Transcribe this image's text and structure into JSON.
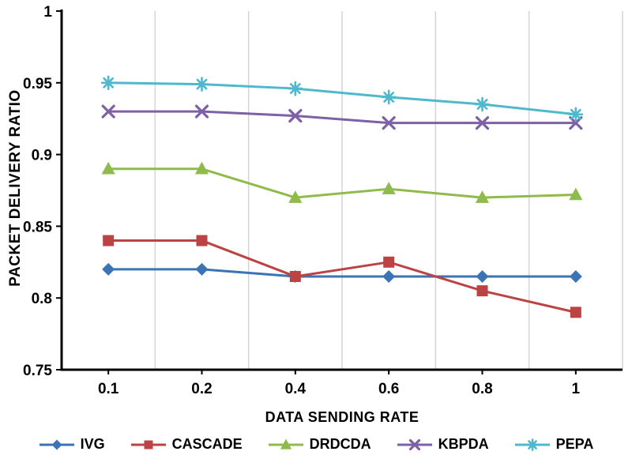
{
  "chart_data": {
    "type": "line",
    "x_label": "DATA SENDING RATE",
    "y_label": "PACKET DELIVERY RATIO",
    "categories": [
      "0.1",
      "0.2",
      "0.4",
      "0.6",
      "0.8",
      "1"
    ],
    "ylim": [
      0.75,
      1.0
    ],
    "y_ticks": [
      0.75,
      0.8,
      0.85,
      0.9,
      0.95,
      1
    ],
    "y_tick_labels": [
      "0.75",
      "0.8",
      "0.85",
      "0.9",
      "0.95",
      "1"
    ],
    "grid": "vertical",
    "legend_position": "bottom",
    "gridline_color": "#d4d4d4",
    "axis_color": "#000000",
    "series": [
      {
        "name": "IVG",
        "color": "#3b73b4",
        "marker": "diamond",
        "values": [
          0.82,
          0.82,
          0.815,
          0.815,
          0.815,
          0.815
        ]
      },
      {
        "name": "CASCADE",
        "color": "#bb4343",
        "marker": "square",
        "values": [
          0.84,
          0.84,
          0.815,
          0.825,
          0.805,
          0.79
        ]
      },
      {
        "name": "DRDCDA",
        "color": "#8fba4c",
        "marker": "triangle",
        "values": [
          0.89,
          0.89,
          0.87,
          0.876,
          0.87,
          0.872
        ]
      },
      {
        "name": "KBPDA",
        "color": "#7d60a5",
        "marker": "x",
        "values": [
          0.93,
          0.93,
          0.927,
          0.922,
          0.922,
          0.922
        ]
      },
      {
        "name": "PEPA",
        "color": "#4fb8cc",
        "marker": "asterisk",
        "values": [
          0.95,
          0.949,
          0.946,
          0.94,
          0.935,
          0.928
        ]
      }
    ]
  }
}
